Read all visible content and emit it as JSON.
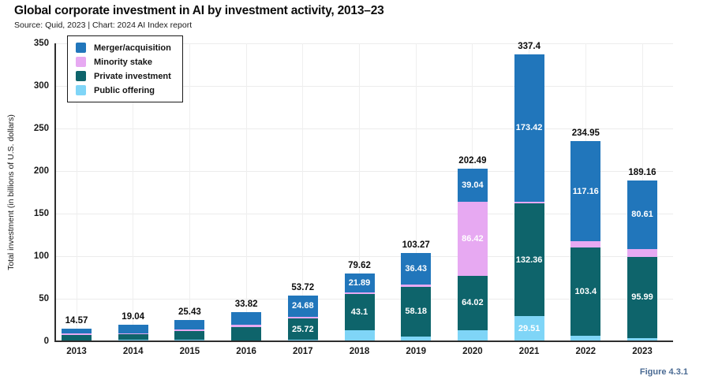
{
  "page": {
    "figure_caption": "Figure 4.3.1"
  },
  "chart_data": {
    "type": "bar",
    "stacked": true,
    "title": "Global corporate investment in AI by investment activity, 2013–23",
    "subtitle": "Source: Quid, 2023 | Chart: 2024 AI Index report",
    "ylabel": "Total investment (in billions of U.S. dollars)",
    "ylim": [
      0,
      350
    ],
    "ytick_step": 50,
    "grid": true,
    "legend_position": "top-left",
    "categories": [
      "2013",
      "2014",
      "2015",
      "2016",
      "2017",
      "2018",
      "2019",
      "2020",
      "2021",
      "2022",
      "2023"
    ],
    "series": [
      {
        "name": "Public offering",
        "color": "#7fd5f7",
        "values": [
          1.0,
          1.9,
          1.9,
          0.9,
          1.42,
          12.63,
          5.66,
          13.01,
          29.51,
          6.6,
          3.5
        ],
        "bar_labels": [
          null,
          null,
          null,
          null,
          null,
          null,
          null,
          null,
          "29.51",
          null,
          null
        ]
      },
      {
        "name": "Private investment",
        "color": "#0e646b",
        "values": [
          6.6,
          6.6,
          10.3,
          16.0,
          25.72,
          43.1,
          58.18,
          64.02,
          132.36,
          103.4,
          95.99
        ],
        "bar_labels": [
          null,
          null,
          null,
          null,
          "25.72",
          "43.1",
          "58.18",
          "64.02",
          "132.36",
          "103.4",
          "95.99"
        ]
      },
      {
        "name": "Minority stake",
        "color": "#e7a9f2",
        "values": [
          1.6,
          1.0,
          1.9,
          2.8,
          1.9,
          2.0,
          3.0,
          86.42,
          2.11,
          7.79,
          9.06
        ],
        "bar_labels": [
          null,
          null,
          null,
          null,
          null,
          null,
          null,
          "86.42",
          null,
          null,
          null
        ]
      },
      {
        "name": "Merger/acquisition",
        "color": "#2176bb",
        "values": [
          5.37,
          9.54,
          11.33,
          14.12,
          24.68,
          21.89,
          36.43,
          39.04,
          173.42,
          117.16,
          80.61
        ],
        "bar_labels": [
          null,
          null,
          null,
          null,
          "24.68",
          "21.89",
          "36.43",
          "39.04",
          "173.42",
          "117.16",
          "80.61"
        ]
      }
    ],
    "totals": [
      "14.57",
      "19.04",
      "25.43",
      "33.82",
      "53.72",
      "79.62",
      "103.27",
      "202.49",
      "337.4",
      "234.95",
      "189.16"
    ],
    "legend": [
      "Merger/acquisition",
      "Minority stake",
      "Private investment",
      "Public offering"
    ]
  }
}
